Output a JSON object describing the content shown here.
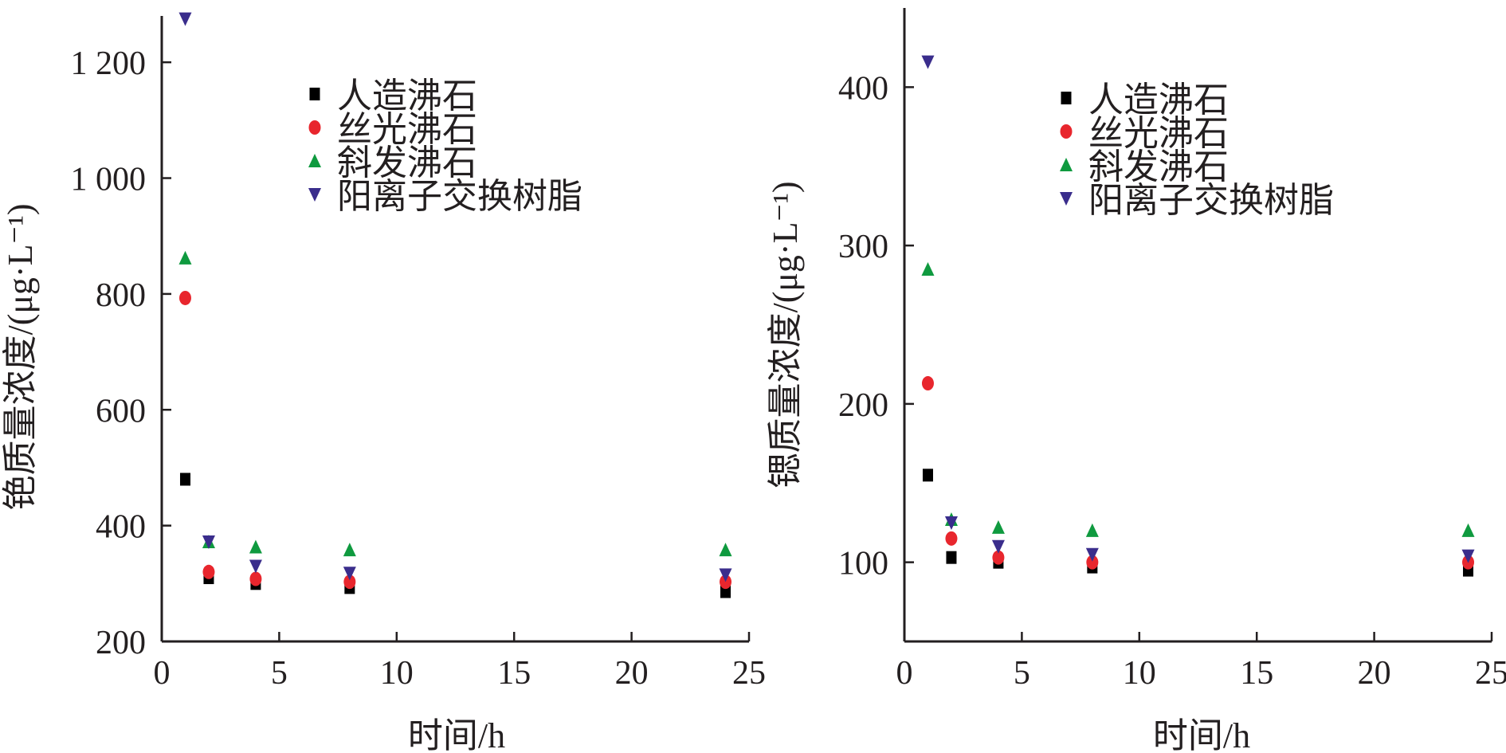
{
  "chart_data": [
    {
      "type": "scatter",
      "xlabel": "时间/h",
      "ylabel": "铯质量浓度/(μg·L⁻¹)",
      "xlim": [
        0,
        25
      ],
      "ylim": [
        200,
        1280
      ],
      "xticks": [
        0,
        5,
        10,
        15,
        20,
        25
      ],
      "yticks": [
        200,
        400,
        600,
        800,
        1000,
        1200
      ],
      "ytick_labels": [
        "200",
        "400",
        "600",
        "800",
        "1 000",
        "1 200"
      ],
      "grid": false,
      "legend_position": "top-center",
      "series": [
        {
          "name": "人造沸石",
          "marker": "square",
          "color": "#000000",
          "x": [
            1,
            2,
            4,
            8,
            24
          ],
          "y": [
            480,
            310,
            300,
            293,
            286
          ]
        },
        {
          "name": "丝光沸石",
          "marker": "circle",
          "color": "#e8262d",
          "x": [
            1,
            2,
            4,
            8,
            24
          ],
          "y": [
            793,
            320,
            308,
            303,
            303
          ]
        },
        {
          "name": "斜发沸石",
          "marker": "triangle-up",
          "color": "#0f9a3f",
          "x": [
            1,
            2,
            4,
            8,
            24
          ],
          "y": [
            862,
            372,
            363,
            358,
            358
          ]
        },
        {
          "name": "阳离子交换树脂",
          "marker": "triangle-down",
          "color": "#3a2d8c",
          "x": [
            1,
            2,
            4,
            8,
            24
          ],
          "y": [
            1275,
            372,
            330,
            318,
            315
          ]
        }
      ]
    },
    {
      "type": "scatter",
      "xlabel": "时间/h",
      "ylabel": "锶质量浓度/(μg·L⁻¹)",
      "xlim": [
        0,
        25
      ],
      "ylim": [
        50,
        450
      ],
      "xticks": [
        0,
        5,
        10,
        15,
        20,
        25
      ],
      "yticks": [
        100,
        200,
        300,
        400
      ],
      "ytick_labels": [
        "100",
        "200",
        "300",
        "400"
      ],
      "grid": false,
      "legend_position": "top-center",
      "series": [
        {
          "name": "人造沸石",
          "marker": "square",
          "color": "#000000",
          "x": [
            1,
            2,
            4,
            8,
            24
          ],
          "y": [
            155,
            103,
            100,
            97,
            95
          ]
        },
        {
          "name": "丝光沸石",
          "marker": "circle",
          "color": "#e8262d",
          "x": [
            1,
            2,
            4,
            8,
            24
          ],
          "y": [
            213,
            115,
            103,
            100,
            100
          ]
        },
        {
          "name": "斜发沸石",
          "marker": "triangle-up",
          "color": "#0f9a3f",
          "x": [
            1,
            2,
            4,
            8,
            24
          ],
          "y": [
            285,
            127,
            122,
            120,
            120
          ]
        },
        {
          "name": "阳离子交换树脂",
          "marker": "triangle-down",
          "color": "#3a2d8c",
          "x": [
            1,
            2,
            4,
            8,
            24
          ],
          "y": [
            416,
            125,
            110,
            105,
            104
          ]
        }
      ]
    }
  ]
}
